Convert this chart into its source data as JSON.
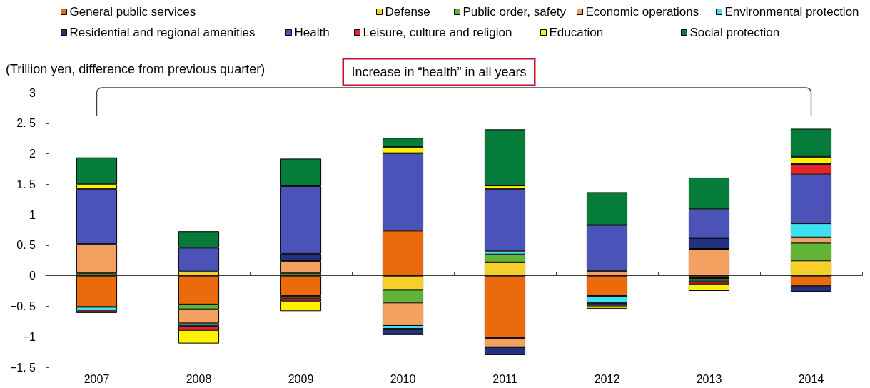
{
  "chart_data": {
    "type": "bar",
    "stacked": true,
    "categories": [
      "2007",
      "2008",
      "2009",
      "2010",
      "2011",
      "2012",
      "2013",
      "2014"
    ],
    "ylabel": "(Trillion yen, difference from previous quarter)",
    "annotations": [
      "Increase in “health” in all years"
    ],
    "ylim": [
      -1.5,
      3
    ],
    "yticks": [
      {
        "value": -1.5,
        "label": "−1. 5"
      },
      {
        "value": -1,
        "label": "−1"
      },
      {
        "value": -0.5,
        "label": "−0. 5"
      },
      0,
      {
        "value": 0.5,
        "label": "0. 5"
      },
      1,
      {
        "value": 1.5,
        "label": "1. 5"
      },
      2,
      {
        "value": 2.5,
        "label": "2. 5"
      },
      3
    ],
    "legend": "top",
    "series": [
      {
        "name": "General public services",
        "color": "#eb6a0c",
        "values": [
          -0.51,
          -0.47,
          -0.33,
          0.74,
          -1.02,
          -0.33,
          -0.04,
          -0.17
        ]
      },
      {
        "name": "Defense",
        "color": "#f7cf2a",
        "values": [
          null,
          0.07,
          -0.04,
          -0.23,
          0.22,
          null,
          null,
          0.25
        ]
      },
      {
        "name": "Public order, safety",
        "color": "#62b436",
        "values": [
          0.04,
          -0.08,
          0.04,
          -0.21,
          0.13,
          null,
          -0.03,
          0.29
        ]
      },
      {
        "name": "Economic operations",
        "color": "#f4a060",
        "values": [
          0.48,
          -0.23,
          0.2,
          -0.37,
          -0.15,
          0.08,
          0.44,
          0.09
        ]
      },
      {
        "name": "Environmental protection",
        "color": "#3fe0ef",
        "values": [
          -0.06,
          -0.04,
          null,
          -0.06,
          0.05,
          -0.12,
          -0.03,
          0.23
        ]
      },
      {
        "name": "Residential and regional amenities",
        "color": "#243080",
        "values": [
          null,
          null,
          0.12,
          -0.09,
          -0.13,
          -0.04,
          0.18,
          -0.09
        ]
      },
      {
        "name": "Health",
        "color": "#4b52b8",
        "values": [
          0.9,
          0.39,
          1.11,
          1.27,
          1.02,
          0.75,
          0.47,
          0.8
        ]
      },
      {
        "name": "Leisure, culture and religion",
        "color": "#e3262b",
        "values": [
          -0.04,
          -0.07,
          -0.05,
          null,
          null,
          null,
          -0.04,
          0.17
        ]
      },
      {
        "name": "Education",
        "color": "#fff100",
        "values": [
          0.08,
          -0.22,
          -0.16,
          0.1,
          0.06,
          -0.05,
          -0.11,
          0.12
        ]
      },
      {
        "name": "Social protection",
        "color": "#067c3a",
        "values": [
          0.44,
          0.27,
          0.45,
          0.15,
          0.92,
          0.54,
          0.52,
          0.46
        ]
      }
    ]
  }
}
